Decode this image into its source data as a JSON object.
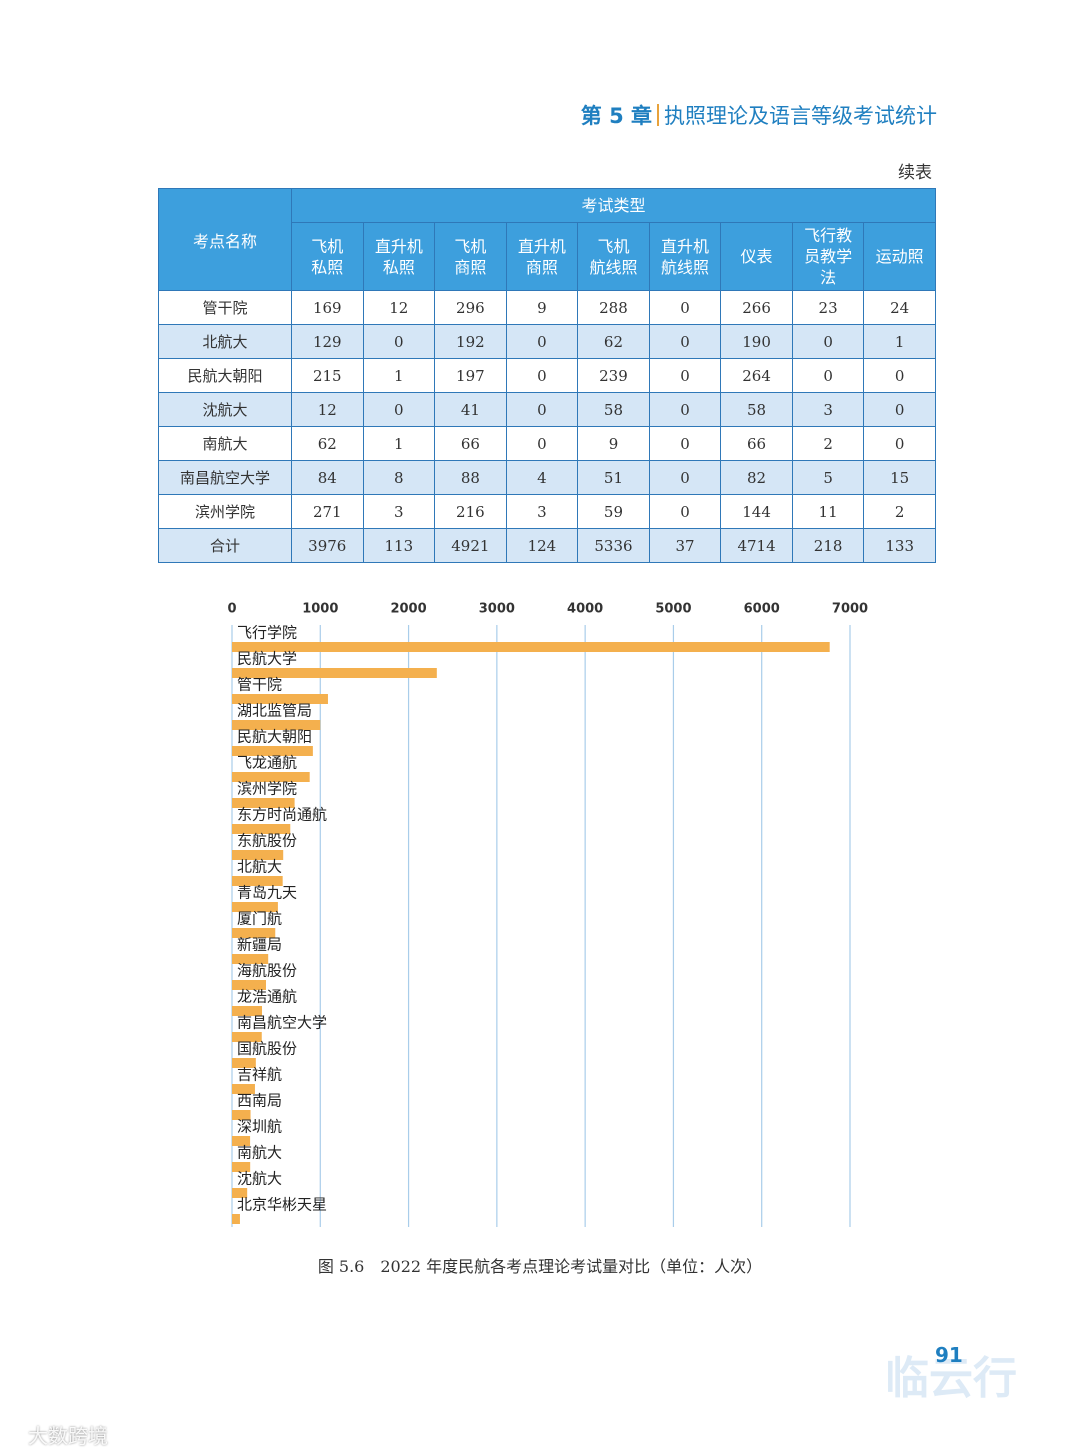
{
  "header": {
    "chapter": "第 5 章",
    "title": "执照理论及语言等级考试统计"
  },
  "continued": "续表",
  "table": {
    "name_header": "考点名称",
    "group_header": "考试类型",
    "columns": [
      [
        "飞机",
        "私照"
      ],
      [
        "直升机",
        "私照"
      ],
      [
        "飞机",
        "商照"
      ],
      [
        "直升机",
        "商照"
      ],
      [
        "飞机",
        "航线照"
      ],
      [
        "直升机",
        "航线照"
      ],
      [
        "仪表"
      ],
      [
        "飞行教",
        "员教学",
        "法"
      ],
      [
        "运动照"
      ]
    ],
    "rows": [
      [
        "管干院",
        169,
        12,
        296,
        9,
        288,
        0,
        266,
        23,
        24
      ],
      [
        "北航大",
        129,
        0,
        192,
        0,
        62,
        0,
        190,
        0,
        1
      ],
      [
        "民航大朝阳",
        215,
        1,
        197,
        0,
        239,
        0,
        264,
        0,
        0
      ],
      [
        "沈航大",
        12,
        0,
        41,
        0,
        58,
        0,
        58,
        3,
        0
      ],
      [
        "南航大",
        62,
        1,
        66,
        0,
        9,
        0,
        66,
        2,
        0
      ],
      [
        "南昌航空大学",
        84,
        8,
        88,
        4,
        51,
        0,
        82,
        5,
        15
      ],
      [
        "滨州学院",
        271,
        3,
        216,
        3,
        59,
        0,
        144,
        11,
        2
      ],
      [
        "合计",
        3976,
        113,
        4921,
        124,
        5336,
        37,
        4714,
        218,
        133
      ]
    ]
  },
  "chart_data": {
    "type": "bar",
    "orientation": "horizontal",
    "categories": [
      "飞行学院",
      "民航大学",
      "管干院",
      "湖北监管局",
      "民航大朝阳",
      "飞龙通航",
      "滨州学院",
      "东方时尚通航",
      "东航股份",
      "北航大",
      "青岛九天",
      "厦门航",
      "新疆局",
      "海航股份",
      "龙浩通航",
      "南昌航空大学",
      "国航股份",
      "吉祥航",
      "西南局",
      "深圳航",
      "南航大",
      "沈航大",
      "北京华彬天星"
    ],
    "values": [
      6770,
      2320,
      1087,
      1000,
      916,
      880,
      709,
      660,
      580,
      574,
      520,
      490,
      410,
      385,
      340,
      337,
      270,
      260,
      210,
      205,
      206,
      172,
      90
    ],
    "color": "#f4b04e",
    "xlim": [
      0,
      7000
    ],
    "xticks": [
      0,
      1000,
      2000,
      3000,
      4000,
      5000,
      6000,
      7000
    ],
    "grid": true
  },
  "caption": "图 5.6　2022 年度民航各考点理论考试量对比（单位：人次）",
  "page_number": "91",
  "watermarks": [
    "临云行",
    "大数跨境"
  ]
}
